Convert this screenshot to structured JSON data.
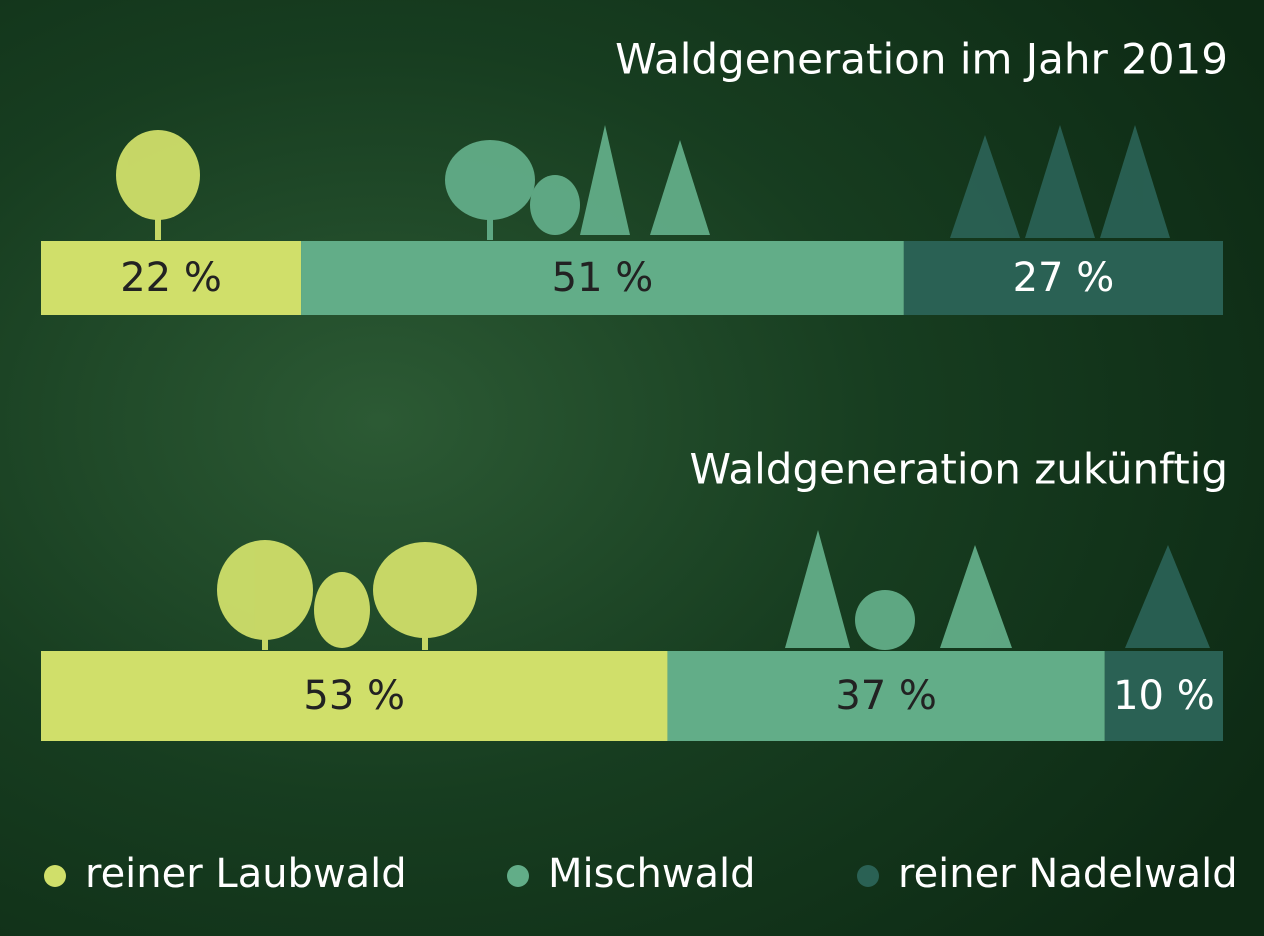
{
  "chart_data": {
    "type": "stacked-bar",
    "categories": [
      "Waldgeneration im Jahr 2019",
      "Waldgeneration zukünftig"
    ],
    "xlim": [
      0,
      100
    ],
    "series": [
      {
        "name": "reiner Laubwald",
        "color": "#d0df6a",
        "values": [
          22,
          53
        ],
        "value_labels": [
          "22 %",
          "53 %"
        ]
      },
      {
        "name": "Mischwald",
        "color": "#62ad88",
        "values": [
          51,
          37
        ],
        "value_labels": [
          "51 %",
          "37 %"
        ]
      },
      {
        "name": "reiner Nadelwald",
        "color": "#2a6154",
        "values": [
          27,
          10
        ],
        "value_labels": [
          "27 %",
          "10 %"
        ]
      }
    ]
  }
}
